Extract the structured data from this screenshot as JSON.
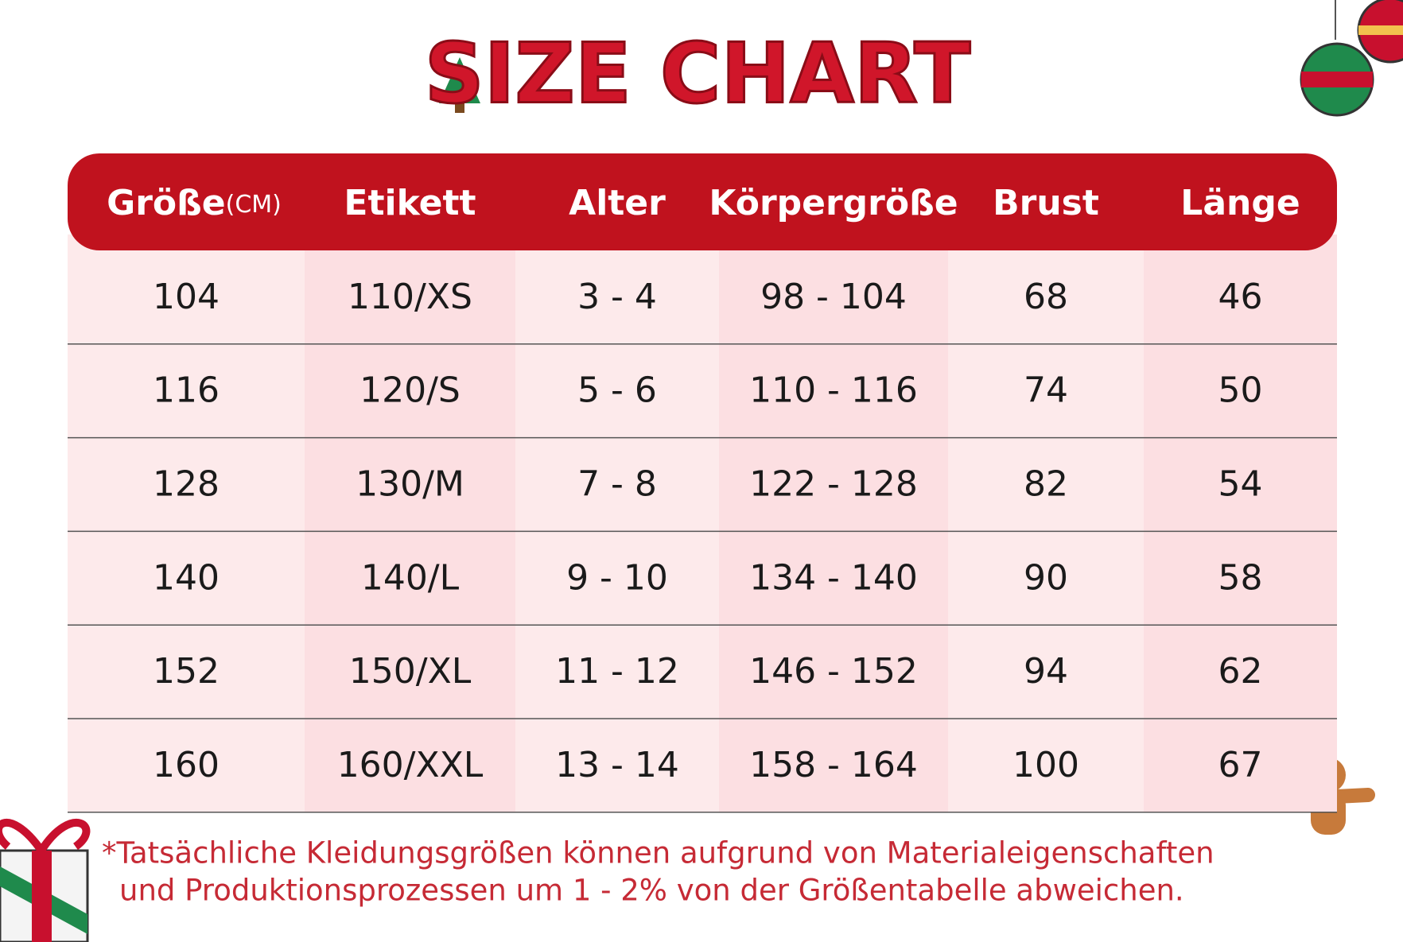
{
  "title": "SIZE CHART",
  "table": {
    "headers": [
      "Größe",
      "Etikett",
      "Alter",
      "Körpergröße",
      "Brust",
      "Länge"
    ],
    "header_unit": "(CM)",
    "rows": [
      [
        "104",
        "110/XS",
        "3 - 4",
        "98 - 104",
        "68",
        "46"
      ],
      [
        "116",
        "120/S",
        "5 - 6",
        "110 - 116",
        "74",
        "50"
      ],
      [
        "128",
        "130/M",
        "7 - 8",
        "122 - 128",
        "82",
        "54"
      ],
      [
        "140",
        "140/L",
        "9 - 10",
        "134 - 140",
        "90",
        "58"
      ],
      [
        "152",
        "150/XL",
        "11 - 12",
        "146 - 152",
        "94",
        "62"
      ],
      [
        "160",
        "160/XXL",
        "13 - 14",
        "158 - 164",
        "100",
        "67"
      ]
    ]
  },
  "footnote": [
    "*Tatsächliche Kleidungsgrößen können aufgrund von Materialeigenschaften",
    "und Produktionsprozessen um 1 - 2% von der Größentabelle abweichen."
  ]
}
